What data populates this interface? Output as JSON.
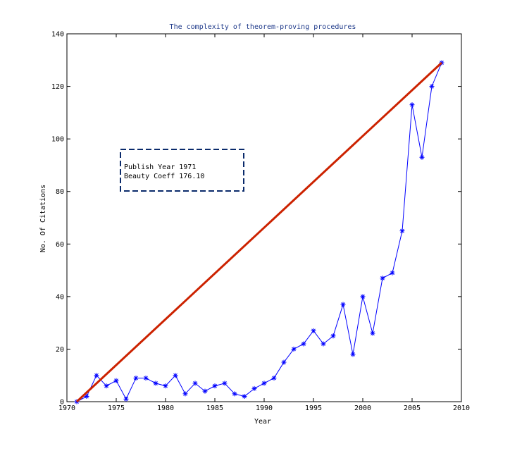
{
  "chart_data": {
    "type": "line",
    "title": "The complexity of theorem-proving procedures",
    "xlabel": "Year",
    "ylabel": "No. Of Citations",
    "xlim": [
      1970,
      2010
    ],
    "ylim": [
      0,
      140
    ],
    "xticks": [
      1970,
      1975,
      1980,
      1985,
      1990,
      1995,
      2000,
      2005,
      2010
    ],
    "yticks": [
      0,
      20,
      40,
      60,
      80,
      100,
      120,
      140
    ],
    "grid": false,
    "series": [
      {
        "color": "#0000ff",
        "marker": "*",
        "x": [
          1971,
          1972,
          1973,
          1974,
          1975,
          1976,
          1977,
          1978,
          1979,
          1980,
          1981,
          1982,
          1983,
          1984,
          1985,
          1986,
          1987,
          1988,
          1989,
          1990,
          1991,
          1992,
          1993,
          1994,
          1995,
          1996,
          1997,
          1998,
          1999,
          2000,
          2001,
          2002,
          2003,
          2004,
          2005,
          2006,
          2007,
          2008
        ],
        "y": [
          0,
          2,
          10,
          6,
          8,
          1,
          9,
          9,
          7,
          6,
          10,
          3,
          7,
          4,
          6,
          7,
          3,
          2,
          5,
          7,
          9,
          15,
          20,
          22,
          27,
          22,
          25,
          37,
          18,
          40,
          26,
          47,
          49,
          65,
          113,
          93,
          120,
          129
        ]
      },
      {
        "color": "#cc2200",
        "x": [
          1971,
          2008
        ],
        "y": [
          0,
          129
        ]
      }
    ],
    "annotation": {
      "lines": [
        "Publish Year  1971",
        "Beauty Coeff  176.10"
      ]
    }
  }
}
